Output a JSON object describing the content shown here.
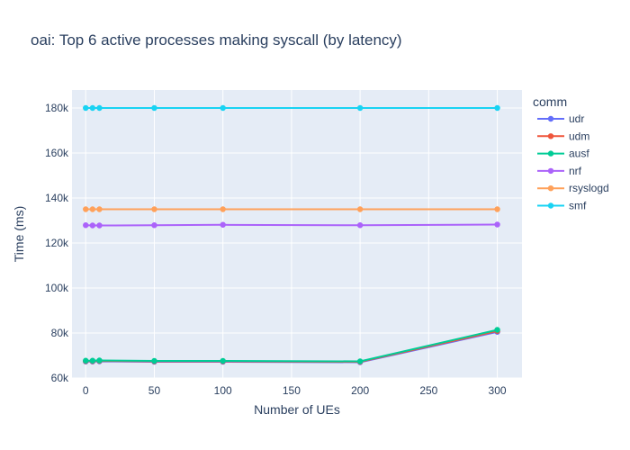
{
  "chart_data": {
    "type": "line",
    "title": "oai: Top 6 active processes making syscall (by latency)",
    "xlabel": "Number of UEs",
    "ylabel": "Time (ms)",
    "xlim": [
      -10,
      318
    ],
    "ylim": [
      60000,
      188000
    ],
    "xticks": [
      0,
      50,
      100,
      150,
      200,
      250,
      300
    ],
    "xtick_labels": [
      "0",
      "50",
      "100",
      "150",
      "200",
      "250",
      "300"
    ],
    "yticks": [
      60000,
      80000,
      100000,
      120000,
      140000,
      160000,
      180000
    ],
    "ytick_labels": [
      "60k",
      "80k",
      "100k",
      "120k",
      "140k",
      "160k",
      "180k"
    ],
    "grid": true,
    "legend": {
      "title": "comm",
      "position": "right"
    },
    "x": [
      0,
      5,
      10,
      50,
      100,
      200,
      300
    ],
    "series": [
      {
        "name": "udr",
        "color": "#636efa",
        "values": [
          67300,
          67300,
          67400,
          67200,
          67200,
          67000,
          80500
        ]
      },
      {
        "name": "udm",
        "color": "#ef553b",
        "values": [
          67500,
          67500,
          67600,
          67400,
          67400,
          67200,
          80900
        ]
      },
      {
        "name": "ausf",
        "color": "#00cc96",
        "values": [
          67700,
          67700,
          67800,
          67600,
          67600,
          67400,
          81400
        ]
      },
      {
        "name": "nrf",
        "color": "#ab63fa",
        "values": [
          127900,
          127800,
          127800,
          127900,
          128100,
          127900,
          128200
        ]
      },
      {
        "name": "rsyslogd",
        "color": "#ffa15a",
        "values": [
          135000,
          135000,
          135000,
          135000,
          135000,
          135000,
          135000
        ]
      },
      {
        "name": "smf",
        "color": "#19d3f3",
        "values": [
          180000,
          180000,
          180000,
          180000,
          180000,
          180000,
          180000
        ]
      }
    ]
  }
}
